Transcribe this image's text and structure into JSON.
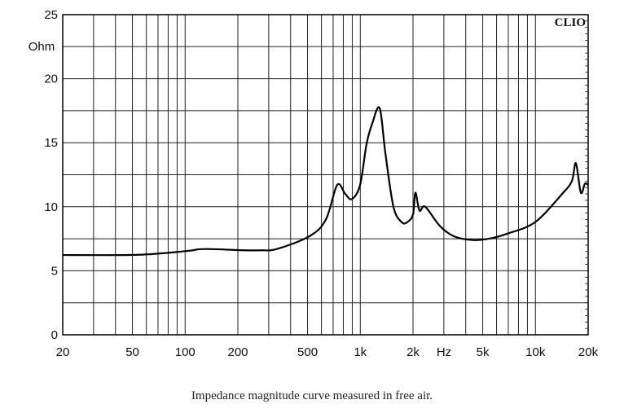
{
  "chart_data": {
    "type": "line",
    "title": "",
    "brand": "CLIO",
    "caption": "Impedance magnitude curve measured in free air.",
    "xlabel": "Hz",
    "ylabel": "Ohm",
    "xscale": "log",
    "xlim": [
      20,
      20000
    ],
    "ylim": [
      0,
      25
    ],
    "grid": true,
    "x_ticks": [
      {
        "value": 20,
        "label": "20"
      },
      {
        "value": 50,
        "label": "50"
      },
      {
        "value": 100,
        "label": "100"
      },
      {
        "value": 200,
        "label": "200"
      },
      {
        "value": 500,
        "label": "500"
      },
      {
        "value": 1000,
        "label": "1k"
      },
      {
        "value": 2000,
        "label": "2k"
      },
      {
        "value": 5000,
        "label": "5k"
      },
      {
        "value": 10000,
        "label": "10k"
      },
      {
        "value": 20000,
        "label": "20k"
      }
    ],
    "y_ticks": [
      {
        "value": 0,
        "label": "0"
      },
      {
        "value": 5,
        "label": "5"
      },
      {
        "value": 10,
        "label": "10"
      },
      {
        "value": 15,
        "label": "15"
      },
      {
        "value": 20,
        "label": "20"
      },
      {
        "value": 25,
        "label": "25"
      }
    ],
    "series": [
      {
        "name": "Impedance",
        "color": "#000000",
        "x": [
          20,
          54,
          103,
          128,
          218,
          270,
          334,
          513,
          636,
          738,
          820,
          896,
          997,
          1086,
          1170,
          1290,
          1390,
          1546,
          1722,
          1856,
          2000,
          2064,
          2178,
          2348,
          2846,
          3418,
          4372,
          5412,
          6920,
          9974,
          14196,
          16140,
          17020,
          18160,
          19160,
          20000
        ],
        "y": [
          6.23,
          6.25,
          6.55,
          6.7,
          6.6,
          6.6,
          6.7,
          7.7,
          9.0,
          11.7,
          11.0,
          10.6,
          11.7,
          14.9,
          16.5,
          17.7,
          14.2,
          10.0,
          8.8,
          8.8,
          9.4,
          11.1,
          9.7,
          10.0,
          8.5,
          7.7,
          7.4,
          7.5,
          7.9,
          8.8,
          11.0,
          12.0,
          13.4,
          11.1,
          11.8,
          11.7
        ]
      }
    ]
  }
}
